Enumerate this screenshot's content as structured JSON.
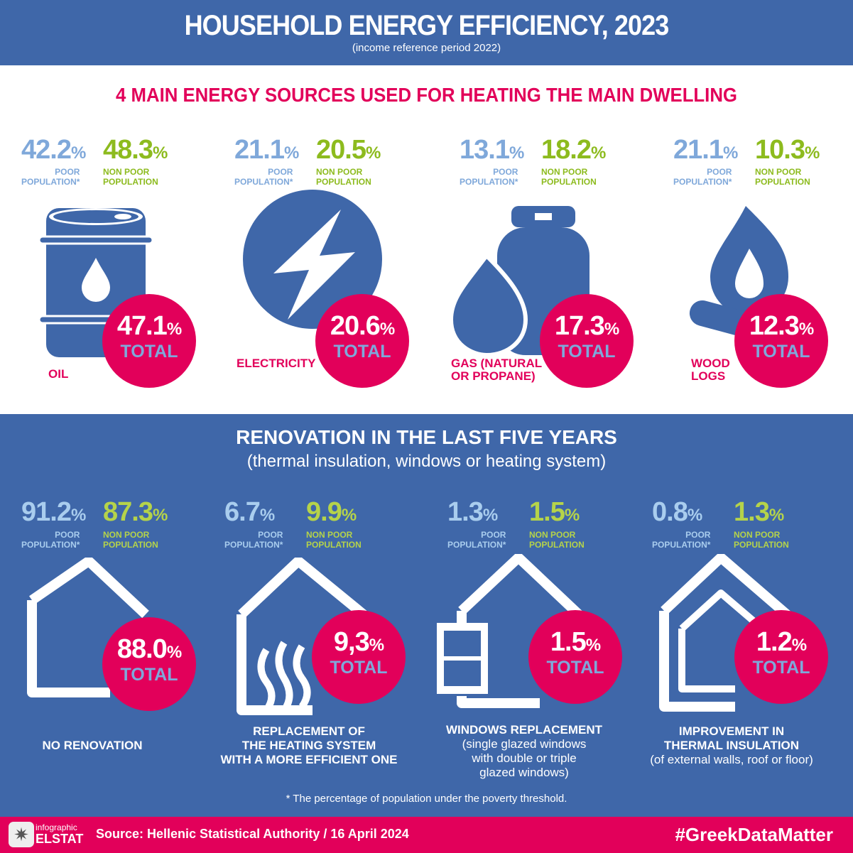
{
  "header": {
    "title": "HOUSEHOLD ENERGY EFFICIENCY, 2023",
    "subtitle": "(income reference period 2022)"
  },
  "labels": {
    "poor": "POOR",
    "poor2": "POPULATION*",
    "np": "NON POOR",
    "np2": "POPULATION",
    "total": "TOTAL",
    "pct": "%"
  },
  "heating": {
    "title": "4 MAIN ENERGY SOURCES USED FOR HEATING THE MAIN DWELLING",
    "items": [
      {
        "poor": "42.2",
        "nonpoor": "48.3",
        "total": "47.1",
        "label": "OIL",
        "label2": "",
        "icon": "oil-barrel-icon"
      },
      {
        "poor": "21.1",
        "nonpoor": "20.5",
        "total": "20.6",
        "label": "ELECTRICITY",
        "label2": "",
        "icon": "lightning-icon"
      },
      {
        "poor": "13.1",
        "nonpoor": "18.2",
        "total": "17.3",
        "label": "GAS (NATURAL",
        "label2": "OR PROPANE)",
        "icon": "gas-cylinder-flame-icon"
      },
      {
        "poor": "21.1",
        "nonpoor": "10.3",
        "total": "12.3",
        "label": "WOOD",
        "label2": "LOGS",
        "icon": "wood-fire-icon"
      }
    ]
  },
  "renovation": {
    "title": "RENOVATION IN THE LAST FIVE YEARS",
    "subtitle": "(thermal insulation, windows or heating system)",
    "items": [
      {
        "poor": "91.2",
        "nonpoor": "87.3",
        "total": "88.0",
        "l1": "NO RENOVATION",
        "l2": "",
        "l3": "",
        "d1": "",
        "d2": "",
        "d3": ""
      },
      {
        "poor": "6.7",
        "nonpoor": "9.9",
        "total": "9,3",
        "l1": "REPLACEMENT OF",
        "l2": "THE HEATING SYSTEM",
        "l3": "WITH A MORE EFFICIENT ONE",
        "d1": "",
        "d2": "",
        "d3": ""
      },
      {
        "poor": "1.3",
        "nonpoor": "1.5",
        "total": "1.5",
        "l1": "WINDOWS REPLACEMENT",
        "l2": "",
        "l3": "",
        "d1": "(single glazed windows",
        "d2": "with double or triple",
        "d3": "glazed windows)"
      },
      {
        "poor": "0.8",
        "nonpoor": "1.3",
        "total": "1.2",
        "l1": "IMPROVEMENT IN",
        "l2": "THERMAL INSULATION",
        "l3": "",
        "d1": "(of external walls, roof or floor)",
        "d2": "",
        "d3": ""
      }
    ],
    "note": "*  The percentage of population under the poverty threshold."
  },
  "footer": {
    "logo_small": "infographic",
    "logo_big": "ELSTAT",
    "source": "Source: Hellenic Statistical Authority / 16 April 2024",
    "hashtag": "#GreekDataMatter"
  }
}
